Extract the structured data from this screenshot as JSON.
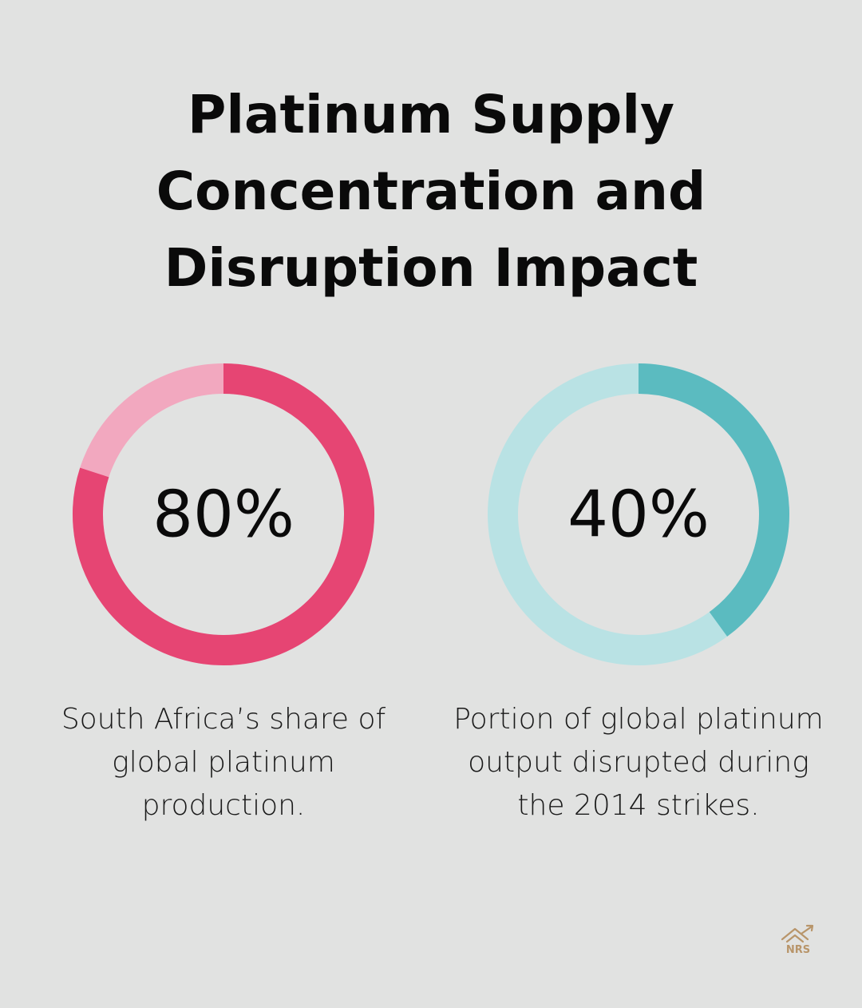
{
  "title_lines": [
    "Platinum Supply",
    "Concentration and",
    "Disruption Impact"
  ],
  "colors": {
    "background": "#e1e2e1",
    "pink_fill": "#e64573",
    "pink_track": "#f2a8bf",
    "teal_fill": "#5bbbc0",
    "teal_track": "#b9e2e4",
    "logo": "#b8956a"
  },
  "chart_data": [
    {
      "type": "pie",
      "values": [
        80,
        20
      ],
      "center_label": "80%",
      "description": "South Africa’s share of global platinum production."
    },
    {
      "type": "pie",
      "values": [
        40,
        60
      ],
      "center_label": "40%",
      "description": "Portion of global platinum output disrupted during the 2014 strikes."
    }
  ],
  "logo": {
    "text": "NRS",
    "icon": "house-with-rising-arrow-icon"
  }
}
